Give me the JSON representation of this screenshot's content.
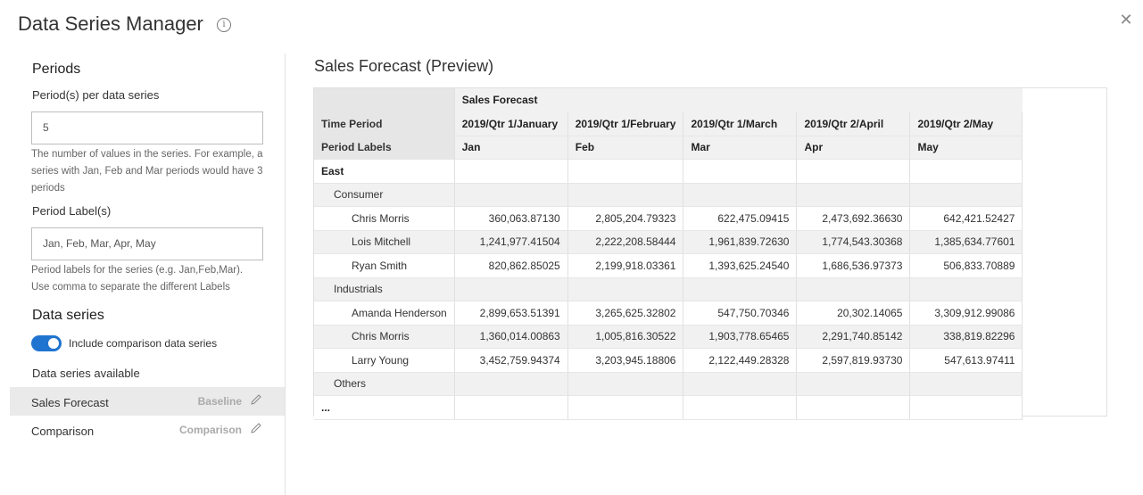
{
  "dialog": {
    "title": "Data Series Manager",
    "info_icon": "info-icon",
    "close_icon": "close-icon"
  },
  "periods": {
    "heading": "Periods",
    "per_series_label": "Period(s) per data series",
    "per_series_value": "5",
    "per_series_help": "The number of values in the series. For example, a series with Jan, Feb and Mar periods would have 3 periods",
    "labels_label": "Period Label(s)",
    "labels_value": "Jan, Feb, Mar, Apr, May",
    "labels_help": "Period labels for the series (e.g. Jan,Feb,Mar). Use comma to separate the different Labels"
  },
  "data_series": {
    "heading": "Data series",
    "toggle_label": "Include comparison data series",
    "toggle_on": true,
    "available_label": "Data series available",
    "items": [
      {
        "name": "Sales Forecast",
        "tag": "Baseline",
        "selected": true
      },
      {
        "name": "Comparison",
        "tag": "Comparison",
        "selected": false
      }
    ]
  },
  "preview": {
    "title": "Sales Forecast (Preview)",
    "series_header": "Sales Forecast",
    "row_time_period": "Time Period",
    "row_period_labels": "Period Labels",
    "time_periods": [
      "2019/Qtr 1/January",
      "2019/Qtr 1/February",
      "2019/Qtr 1/March",
      "2019/Qtr 2/April",
      "2019/Qtr 2/May"
    ],
    "period_labels": [
      "Jan",
      "Feb",
      "Mar",
      "Apr",
      "May"
    ],
    "rows": [
      {
        "label": "East",
        "level": 0,
        "values": [
          "",
          "",
          "",
          "",
          ""
        ]
      },
      {
        "label": "Consumer",
        "level": 1,
        "values": [
          "",
          "",
          "",
          "",
          ""
        ]
      },
      {
        "label": "Chris Morris",
        "level": 2,
        "values": [
          "360,063.87130",
          "2,805,204.79323",
          "622,475.09415",
          "2,473,692.36630",
          "642,421.52427"
        ]
      },
      {
        "label": "Lois Mitchell",
        "level": 2,
        "values": [
          "1,241,977.41504",
          "2,222,208.58444",
          "1,961,839.72630",
          "1,774,543.30368",
          "1,385,634.77601"
        ]
      },
      {
        "label": "Ryan Smith",
        "level": 2,
        "values": [
          "820,862.85025",
          "2,199,918.03361",
          "1,393,625.24540",
          "1,686,536.97373",
          "506,833.70889"
        ]
      },
      {
        "label": "Industrials",
        "level": 1,
        "values": [
          "",
          "",
          "",
          "",
          ""
        ]
      },
      {
        "label": "Amanda Henderson",
        "level": 2,
        "values": [
          "2,899,653.51391",
          "3,265,625.32802",
          "547,750.70346",
          "20,302.14065",
          "3,309,912.99086"
        ]
      },
      {
        "label": "Chris Morris",
        "level": 2,
        "values": [
          "1,360,014.00863",
          "1,005,816.30522",
          "1,903,778.65465",
          "2,291,740.85142",
          "338,819.82296"
        ]
      },
      {
        "label": "Larry Young",
        "level": 2,
        "values": [
          "3,452,759.94374",
          "3,203,945.18806",
          "2,122,449.28328",
          "2,597,819.93730",
          "547,613.97411"
        ]
      },
      {
        "label": "Others",
        "level": 1,
        "values": [
          "",
          "",
          "",
          "",
          ""
        ]
      },
      {
        "label": "...",
        "level": 0,
        "values": [
          "",
          "",
          "",
          "",
          ""
        ]
      }
    ]
  },
  "colors": {
    "accent": "#1f74d0",
    "header_bg": "#e6e6e6",
    "stripe_bg": "#f1f1f1"
  }
}
